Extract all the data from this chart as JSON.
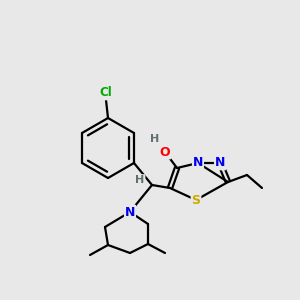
{
  "background_color": "#e8e8e8",
  "bond_color": "#000000",
  "atom_colors": {
    "N": "#0000EE",
    "O": "#FF0000",
    "S": "#CCAA00",
    "Cl": "#00AA00",
    "H": "#607070",
    "C": "#000000"
  },
  "figsize": [
    3.0,
    3.0
  ],
  "dpi": 100
}
